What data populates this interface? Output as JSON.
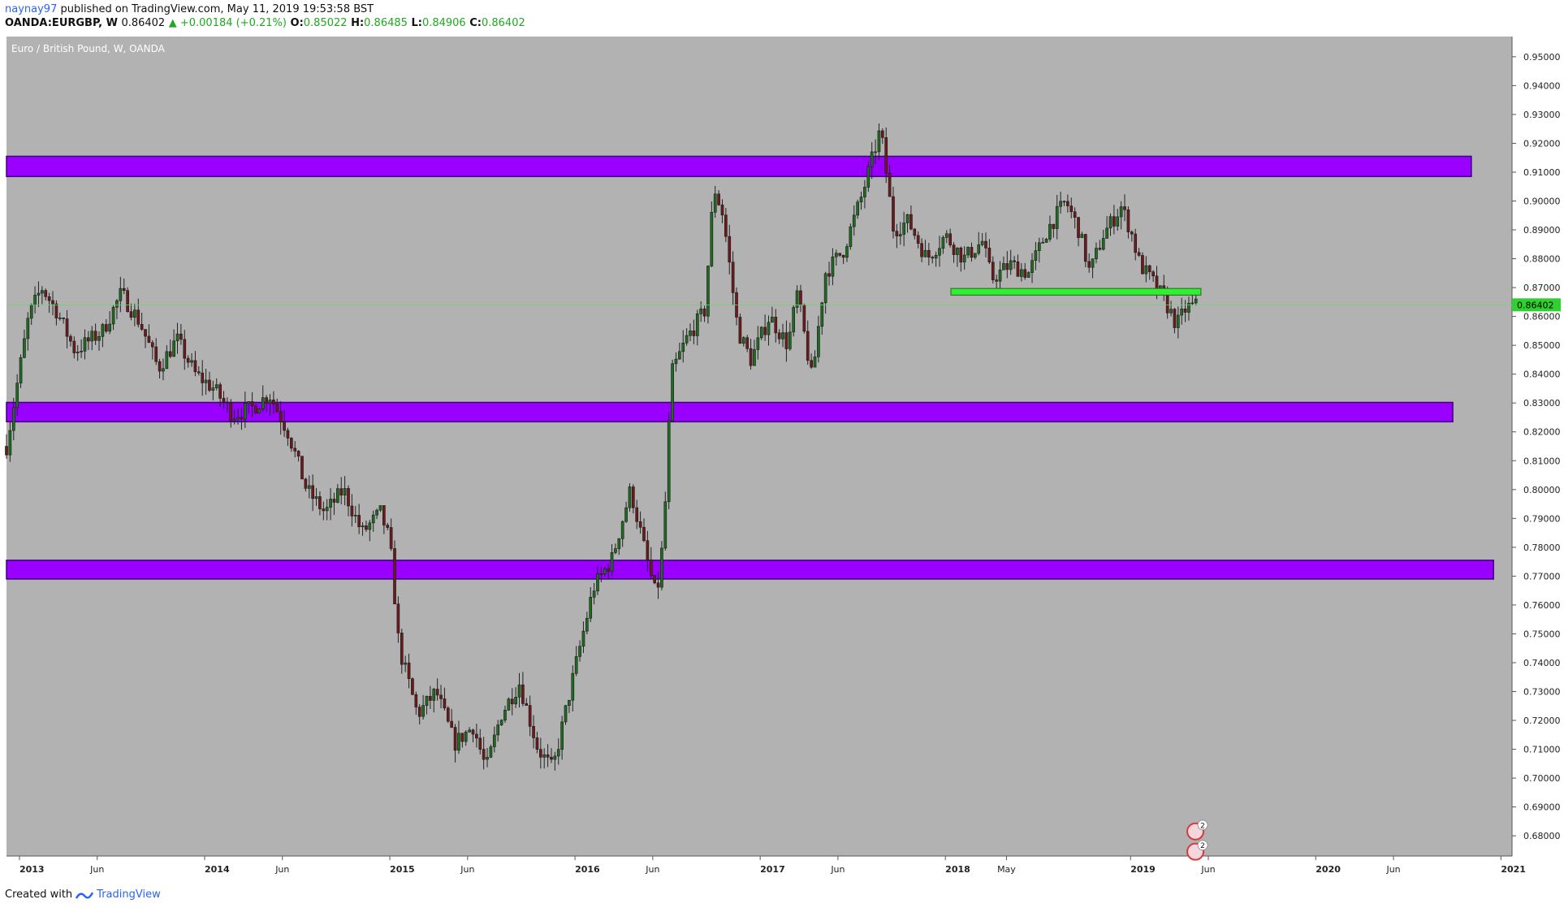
{
  "header": {
    "user": "naynay97",
    "published": "published on TradingView.com, May 11, 2019 19:53:58 BST",
    "symbol": "OANDA:EURGBP, W",
    "last": "0.86402",
    "change": "▲ +0.00184 (+0.21%)",
    "o_label": "O:",
    "o": "0.85022",
    "h_label": "H:",
    "h": "0.86485",
    "l_label": "L:",
    "l": "0.84906",
    "c_label": "C:",
    "c": "0.86402"
  },
  "footer": {
    "created": "Created with",
    "brand": "TradingView"
  },
  "colors": {
    "bg": "#b2b2b2",
    "up": "#1f6b1f",
    "down": "#6e1a1a",
    "zone": "#9900ff",
    "zone_border": "#3b007a",
    "support": "#33ee33",
    "price_line": "#6fd36f"
  },
  "chart_data": {
    "type": "candlestick",
    "title": "Euro / British Pound, W, OANDA",
    "ylim": [
      0.673,
      0.957
    ],
    "y_ticks": [
      "0.95000",
      "0.94000",
      "0.93000",
      "0.92000",
      "0.91000",
      "0.90000",
      "0.89000",
      "0.88000",
      "0.87000",
      "0.86000",
      "0.85000",
      "0.84000",
      "0.83000",
      "0.82000",
      "0.81000",
      "0.80000",
      "0.79000",
      "0.78000",
      "0.77000",
      "0.76000",
      "0.75000",
      "0.74000",
      "0.73000",
      "0.72000",
      "0.71000",
      "0.70000",
      "0.69000",
      "0.68000"
    ],
    "x_ticks": [
      {
        "t": 2013.0,
        "label": "2013"
      },
      {
        "t": 2013.42,
        "label": "Jun"
      },
      {
        "t": 2014.0,
        "label": "2014"
      },
      {
        "t": 2014.42,
        "label": "Jun"
      },
      {
        "t": 2015.0,
        "label": "2015"
      },
      {
        "t": 2015.42,
        "label": "Jun"
      },
      {
        "t": 2016.0,
        "label": "2016"
      },
      {
        "t": 2016.42,
        "label": "Jun"
      },
      {
        "t": 2017.0,
        "label": "2017"
      },
      {
        "t": 2017.42,
        "label": "Jun"
      },
      {
        "t": 2018.0,
        "label": "2018"
      },
      {
        "t": 2018.33,
        "label": "May"
      },
      {
        "t": 2019.0,
        "label": "2019"
      },
      {
        "t": 2019.42,
        "label": "Jun"
      },
      {
        "t": 2020.0,
        "label": "2020"
      },
      {
        "t": 2020.42,
        "label": "Jun"
      },
      {
        "t": 2021.0,
        "label": "2021"
      }
    ],
    "xlim": [
      2012.93,
      2021.06
    ],
    "last_price": 0.86402,
    "last_price_label": "0.86402",
    "anchors": [
      [
        2012.93,
        0.815
      ],
      [
        2013.05,
        0.86
      ],
      [
        2013.12,
        0.87
      ],
      [
        2013.2,
        0.862
      ],
      [
        2013.3,
        0.848
      ],
      [
        2013.45,
        0.855
      ],
      [
        2013.55,
        0.868
      ],
      [
        2013.65,
        0.858
      ],
      [
        2013.75,
        0.842
      ],
      [
        2013.85,
        0.852
      ],
      [
        2013.95,
        0.84
      ],
      [
        2014.05,
        0.835
      ],
      [
        2014.15,
        0.826
      ],
      [
        2014.25,
        0.828
      ],
      [
        2014.35,
        0.833
      ],
      [
        2014.45,
        0.82
      ],
      [
        2014.55,
        0.8
      ],
      [
        2014.65,
        0.792
      ],
      [
        2014.75,
        0.8
      ],
      [
        2014.85,
        0.785
      ],
      [
        2014.95,
        0.792
      ],
      [
        2015.0,
        0.782
      ],
      [
        2015.05,
        0.745
      ],
      [
        2015.15,
        0.722
      ],
      [
        2015.25,
        0.73
      ],
      [
        2015.35,
        0.712
      ],
      [
        2015.45,
        0.718
      ],
      [
        2015.52,
        0.703
      ],
      [
        2015.6,
        0.722
      ],
      [
        2015.7,
        0.733
      ],
      [
        2015.8,
        0.71
      ],
      [
        2015.88,
        0.703
      ],
      [
        2016.0,
        0.738
      ],
      [
        2016.1,
        0.766
      ],
      [
        2016.2,
        0.776
      ],
      [
        2016.3,
        0.8
      ],
      [
        2016.38,
        0.778
      ],
      [
        2016.44,
        0.762
      ],
      [
        2016.48,
        0.785
      ],
      [
        2016.52,
        0.84
      ],
      [
        2016.6,
        0.852
      ],
      [
        2016.7,
        0.862
      ],
      [
        2016.75,
        0.905
      ],
      [
        2016.8,
        0.895
      ],
      [
        2016.88,
        0.855
      ],
      [
        2016.95,
        0.845
      ],
      [
        2017.05,
        0.86
      ],
      [
        2017.15,
        0.85
      ],
      [
        2017.2,
        0.868
      ],
      [
        2017.28,
        0.838
      ],
      [
        2017.35,
        0.875
      ],
      [
        2017.45,
        0.883
      ],
      [
        2017.55,
        0.902
      ],
      [
        2017.65,
        0.925
      ],
      [
        2017.72,
        0.89
      ],
      [
        2017.8,
        0.893
      ],
      [
        2017.9,
        0.88
      ],
      [
        2018.0,
        0.888
      ],
      [
        2018.1,
        0.88
      ],
      [
        2018.2,
        0.886
      ],
      [
        2018.25,
        0.873
      ],
      [
        2018.35,
        0.878
      ],
      [
        2018.45,
        0.875
      ],
      [
        2018.55,
        0.89
      ],
      [
        2018.65,
        0.9
      ],
      [
        2018.72,
        0.89
      ],
      [
        2018.78,
        0.875
      ],
      [
        2018.85,
        0.888
      ],
      [
        2018.95,
        0.898
      ],
      [
        2019.0,
        0.89
      ],
      [
        2019.05,
        0.878
      ],
      [
        2019.12,
        0.872
      ],
      [
        2019.18,
        0.866
      ],
      [
        2019.25,
        0.857
      ],
      [
        2019.3,
        0.863
      ],
      [
        2019.37,
        0.864
      ]
    ]
  },
  "zones": [
    {
      "name": "resistance-zone-upper",
      "y_top": 0.9155,
      "y_bot": 0.9085,
      "x_end": 2020.84
    },
    {
      "name": "zone-middle",
      "y_top": 0.8302,
      "y_bot": 0.8235,
      "x_end": 2020.74
    },
    {
      "name": "zone-lower",
      "y_top": 0.7755,
      "y_bot": 0.769,
      "x_end": 2020.96
    }
  ],
  "support_box": {
    "y_top": 0.8697,
    "y_bot": 0.8674,
    "x_start": 2018.03,
    "x_end": 2019.38
  },
  "markers": [
    {
      "x": 2019.35,
      "y": 0.6815,
      "count": "2"
    },
    {
      "x": 2019.35,
      "y": 0.6745,
      "count": "2"
    }
  ]
}
